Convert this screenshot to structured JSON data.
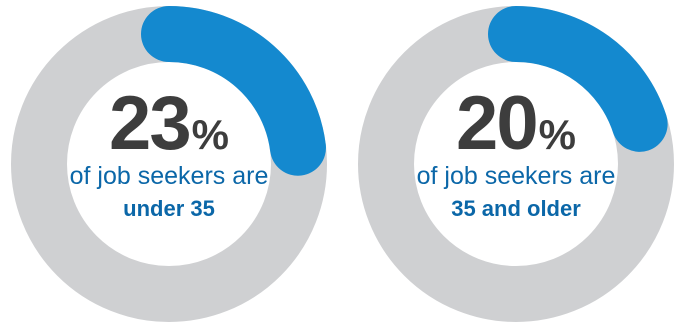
{
  "chart_data": [
    {
      "type": "pie",
      "value": 23,
      "unit": "%",
      "text_line1": "of job seekers are",
      "text_line2": "under 35"
    },
    {
      "type": "pie",
      "value": 20,
      "unit": "%",
      "text_line1": "of job seekers are",
      "text_line2": "35 and older"
    }
  ],
  "colors": {
    "track": "#cfd0d2",
    "highlight": "#1489cf",
    "number": "#3d3d3d",
    "caption": "#0b67a8"
  }
}
